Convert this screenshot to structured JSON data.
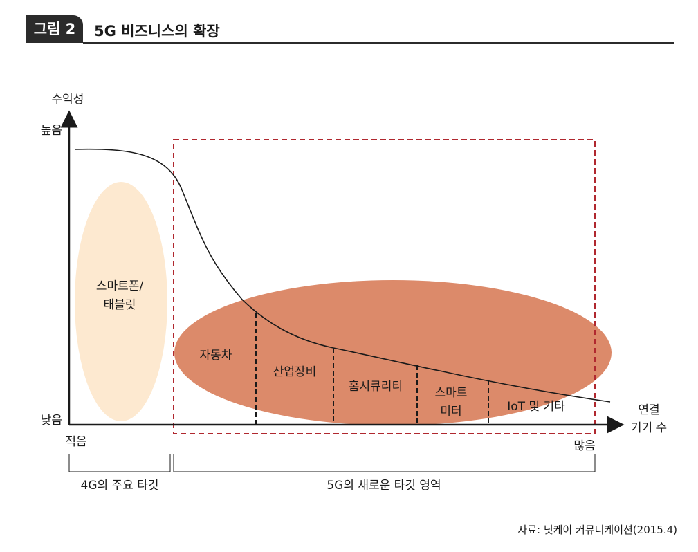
{
  "header": {
    "badge": "그림 2",
    "title": "5G 비즈니스의 확장"
  },
  "axes": {
    "y_title": "수익성",
    "y_high": "높음",
    "y_low": "낮음",
    "x_low": "적음",
    "x_high": "많음",
    "x_title_line1": "연결",
    "x_title_line2": "기기 수"
  },
  "regions": {
    "smartphone_line1": "스마트폰/",
    "smartphone_line2": "태블릿",
    "segments": [
      {
        "label": "자동차"
      },
      {
        "label": "산업장비"
      },
      {
        "label": "홈시큐리티"
      },
      {
        "label_line1": "스마트",
        "label_line2": "미터"
      },
      {
        "label": "IoT 및 기타"
      }
    ]
  },
  "brackets": {
    "left": "4G의 주요 타깃",
    "right": "5G의 새로운 타깃 영역"
  },
  "source": "자료: 닛케이 커뮤니케이션(2015.4)",
  "colors": {
    "smartphone_fill": "#fde9d0",
    "new_target_fill": "#dc8a6a",
    "dashed_box": "#b0282f",
    "axis": "#1a1a1a",
    "header_bg": "#2b2b2b"
  }
}
